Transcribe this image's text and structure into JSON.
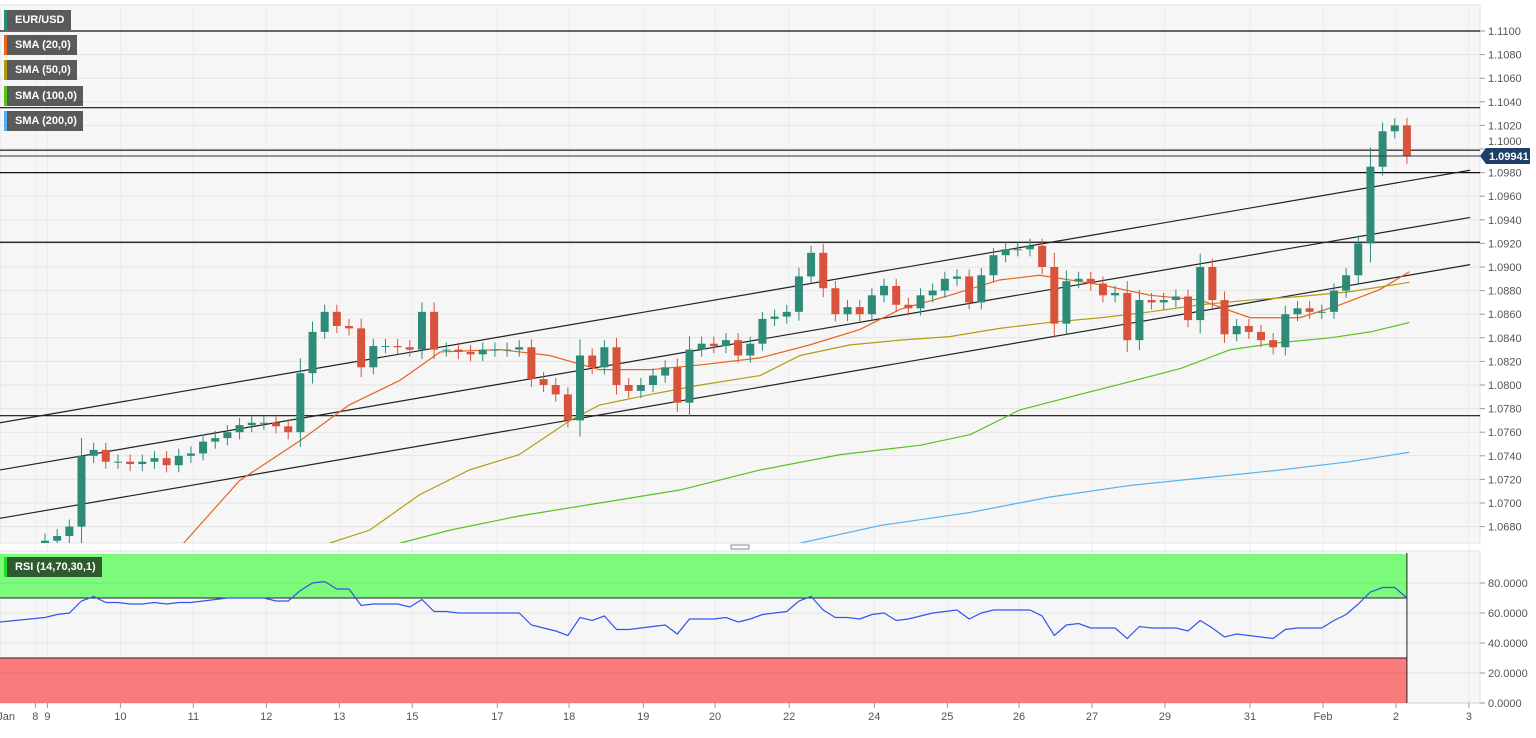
{
  "chart_data": {
    "type": "candlestick",
    "symbol": "EUR/USD",
    "legend": [
      {
        "label": "EUR/USD",
        "color": "#2e8b78"
      },
      {
        "label": "SMA (20,0)",
        "color": "#e8641e"
      },
      {
        "label": "SMA (50,0)",
        "color": "#b39c12"
      },
      {
        "label": "SMA (100,0)",
        "color": "#58c31e"
      },
      {
        "label": "SMA (200,0)",
        "color": "#56b0f0"
      }
    ],
    "current_price": "1.09941",
    "yticks": [
      "1.1100",
      "1.1080",
      "1.1060",
      "1.1040",
      "1.1020",
      "1.1000",
      "1.0980",
      "1.0960",
      "1.0940",
      "1.0920",
      "1.0900",
      "1.0880",
      "1.0860",
      "1.0840",
      "1.0820",
      "1.0800",
      "1.0780",
      "1.0760",
      "1.0740",
      "1.0720",
      "1.0700",
      "1.0680"
    ],
    "ylim": [
      1.0665,
      1.1122
    ],
    "xticks": [
      {
        "label": "Jan",
        "i": -3.2
      },
      {
        "label": "8",
        "i": -0.8
      },
      {
        "label": "9",
        "i": 0.2
      },
      {
        "label": "10",
        "i": 6.2
      },
      {
        "label": "11",
        "i": 12.2
      },
      {
        "label": "12",
        "i": 18.2
      },
      {
        "label": "13",
        "i": 24.2
      },
      {
        "label": "15",
        "i": 30.2
      },
      {
        "label": "17",
        "i": 37.2
      },
      {
        "label": "18",
        "i": 43.1
      },
      {
        "label": "19",
        "i": 49.2
      },
      {
        "label": "20",
        "i": 55.1
      },
      {
        "label": "22",
        "i": 61.2
      },
      {
        "label": "24",
        "i": 68.2
      },
      {
        "label": "25",
        "i": 74.2
      },
      {
        "label": "26",
        "i": 80.1
      },
      {
        "label": "27",
        "i": 86.1
      },
      {
        "label": "29",
        "i": 92.1
      },
      {
        "label": "31",
        "i": 99.1
      },
      {
        "label": "Feb",
        "i": 105.1
      },
      {
        "label": "2",
        "i": 111.1
      },
      {
        "label": "3",
        "i": 117.1
      }
    ],
    "first_open": 1.0664,
    "closes": [
      1.0668,
      1.0672,
      1.068,
      1.074,
      1.0745,
      1.0735,
      1.0735,
      1.0733,
      1.0735,
      1.0738,
      1.0732,
      1.074,
      1.0742,
      1.0752,
      1.0755,
      1.076,
      1.0766,
      1.0768,
      1.0768,
      1.0765,
      1.076,
      1.081,
      1.0845,
      1.0862,
      1.085,
      1.0848,
      1.0815,
      1.0833,
      1.0833,
      1.0832,
      1.083,
      1.0862,
      1.083,
      1.083,
      1.0828,
      1.0826,
      1.083,
      1.083,
      1.083,
      1.0832,
      1.0805,
      1.08,
      1.0792,
      1.077,
      1.0825,
      1.0815,
      1.0832,
      1.08,
      1.0795,
      1.08,
      1.0808,
      1.0815,
      1.0785,
      1.083,
      1.0835,
      1.0833,
      1.0838,
      1.0825,
      1.0835,
      1.0856,
      1.0858,
      1.0862,
      1.0892,
      1.0912,
      1.0882,
      1.086,
      1.0866,
      1.086,
      1.0876,
      1.0884,
      1.0868,
      1.0865,
      1.0876,
      1.088,
      1.089,
      1.0892,
      1.087,
      1.0893,
      1.091,
      1.0915,
      1.0915,
      1.0918,
      1.09,
      1.0852,
      1.0888,
      1.089,
      1.0886,
      1.0876,
      1.0878,
      1.0838,
      1.0872,
      1.087,
      1.0872,
      1.0875,
      1.0855,
      1.09,
      1.0872,
      1.0843,
      1.085,
      1.0845,
      1.0838,
      1.0832,
      1.086,
      1.0865,
      1.0862,
      1.0862,
      1.088,
      1.0893,
      1.092,
      1.0985,
      1.1015,
      1.102,
      1.0994
    ],
    "sma": [
      {
        "name": "SMA (20,0)",
        "color": "#e8641e",
        "points": [
          [
            11.4,
            1.0666
          ],
          [
            16,
            1.0719
          ],
          [
            21,
            1.0753
          ],
          [
            25,
            1.0783
          ],
          [
            29.2,
            1.0804
          ],
          [
            32.5,
            1.0828
          ],
          [
            37.4,
            1.083
          ],
          [
            41.5,
            1.0825
          ],
          [
            45.6,
            1.0813
          ],
          [
            49.8,
            1.0813
          ],
          [
            53.9,
            1.0817
          ],
          [
            58.8,
            1.0823
          ],
          [
            62.9,
            1.0834
          ],
          [
            67,
            1.0847
          ],
          [
            70.3,
            1.0864
          ],
          [
            74.4,
            1.0876
          ],
          [
            78.5,
            1.0889
          ],
          [
            81.8,
            1.0893
          ],
          [
            86.8,
            1.0885
          ],
          [
            90.9,
            1.0876
          ],
          [
            95,
            1.0872
          ],
          [
            99.1,
            1.0857
          ],
          [
            103.2,
            1.0857
          ],
          [
            106.5,
            1.0868
          ],
          [
            109.8,
            1.0881
          ],
          [
            112.2,
            1.0896
          ]
        ]
      },
      {
        "name": "SMA (50,0)",
        "color": "#b39c12",
        "points": [
          [
            23.4,
            1.0666
          ],
          [
            26.7,
            1.0677
          ],
          [
            30.8,
            1.0707
          ],
          [
            34.9,
            1.0728
          ],
          [
            39,
            1.0741
          ],
          [
            43.2,
            1.077
          ],
          [
            45.6,
            1.0783
          ],
          [
            49.8,
            1.0792
          ],
          [
            53.9,
            1.08
          ],
          [
            58.8,
            1.0808
          ],
          [
            62.1,
            1.0825
          ],
          [
            66.2,
            1.0834
          ],
          [
            70.3,
            1.0838
          ],
          [
            74.4,
            1.0841
          ],
          [
            78.5,
            1.0848
          ],
          [
            82.6,
            1.0853
          ],
          [
            86.8,
            1.0857
          ],
          [
            90.9,
            1.0862
          ],
          [
            95,
            1.0868
          ],
          [
            99.1,
            1.0872
          ],
          [
            103.2,
            1.0875
          ],
          [
            107.3,
            1.0879
          ],
          [
            112.2,
            1.0887
          ]
        ]
      },
      {
        "name": "SMA (100,0)",
        "color": "#58c31e",
        "points": [
          [
            29.2,
            1.0666
          ],
          [
            33.3,
            1.0677
          ],
          [
            39,
            1.0689
          ],
          [
            45.6,
            1.07
          ],
          [
            52.2,
            1.0711
          ],
          [
            58.8,
            1.0728
          ],
          [
            65.4,
            1.0741
          ],
          [
            72,
            1.0749
          ],
          [
            76.1,
            1.0758
          ],
          [
            80.2,
            1.0779
          ],
          [
            85.1,
            1.0792
          ],
          [
            89.3,
            1.0803
          ],
          [
            93.4,
            1.0814
          ],
          [
            97.5,
            1.083
          ],
          [
            101.6,
            1.0836
          ],
          [
            105.7,
            1.084
          ],
          [
            109,
            1.0845
          ],
          [
            112.2,
            1.0853
          ]
        ]
      },
      {
        "name": "SMA (200,0)",
        "color": "#56b0f0",
        "points": [
          [
            62.1,
            1.0666
          ],
          [
            68.7,
            1.0681
          ],
          [
            76.1,
            1.0692
          ],
          [
            82.6,
            1.0705
          ],
          [
            89.3,
            1.0715
          ],
          [
            95,
            1.0721
          ],
          [
            101.6,
            1.0728
          ],
          [
            107.3,
            1.0735
          ],
          [
            112.2,
            1.0743
          ]
        ]
      }
    ],
    "horizontal_levels": [
      1.11,
      1.1035,
      1.0999,
      1.098,
      1.0921,
      1.0774
    ],
    "trendlines": [
      [
        [
          -3.7,
          1.0768
        ],
        [
          117.2,
          1.0982
        ]
      ],
      [
        [
          -3.7,
          1.0728
        ],
        [
          117.2,
          1.0942
        ]
      ],
      [
        [
          -3.7,
          1.0687
        ],
        [
          117.2,
          1.0902
        ]
      ]
    ],
    "rsi": {
      "label": "RSI (14,70,30,1)",
      "overbought": 70,
      "oversold": 30,
      "yticks": [
        "80.0000",
        "60.0000",
        "40.0000",
        "20.0000",
        "0.0000"
      ],
      "values": [
        57,
        59,
        60,
        68,
        71,
        67,
        67,
        66,
        66,
        67,
        66,
        67,
        67,
        68,
        69,
        70,
        70,
        70,
        70,
        68,
        68,
        75,
        80,
        81,
        76,
        76,
        65,
        66,
        66,
        66,
        64,
        69,
        61,
        61,
        60,
        60,
        60,
        60,
        60,
        60,
        52,
        50,
        48,
        45,
        57,
        55,
        58,
        49,
        49,
        50,
        51,
        52,
        46,
        56,
        56,
        56,
        57,
        54,
        56,
        59,
        60,
        61,
        68,
        71,
        62,
        57,
        57,
        56,
        59,
        60,
        55,
        56,
        58,
        60,
        61,
        62,
        56,
        60,
        62,
        62,
        62,
        62,
        58,
        45,
        52,
        53,
        50,
        50,
        50,
        43,
        51,
        50,
        50,
        50,
        48,
        55,
        50,
        44,
        46,
        45,
        44,
        43,
        49,
        50,
        50,
        50,
        55,
        59,
        66,
        74,
        77,
        77,
        70
      ]
    },
    "colors": {
      "up": "#2e8b78",
      "down": "#d9533c",
      "rsi_line": "#3355ee",
      "overbought_zone": "#7bfa7b",
      "oversold_zone": "#fa7b7b"
    }
  }
}
